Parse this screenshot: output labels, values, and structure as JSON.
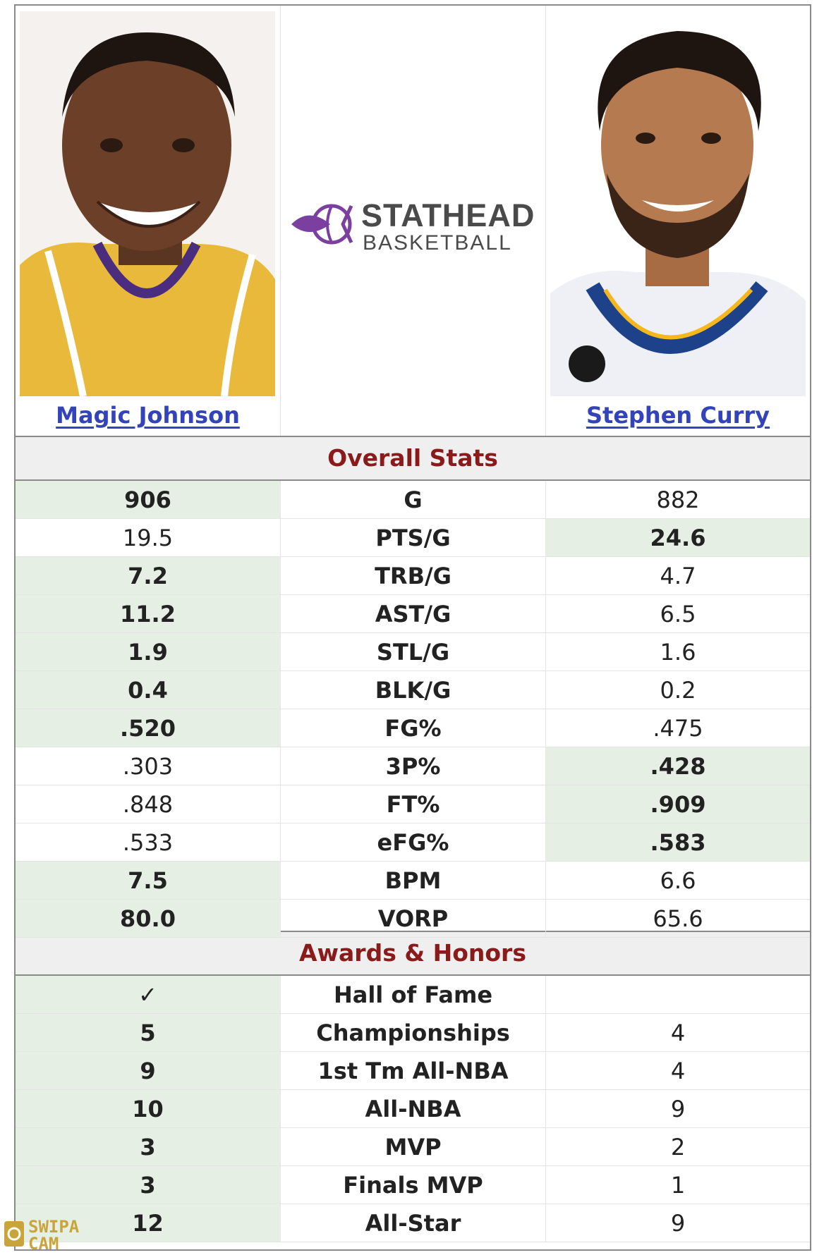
{
  "players": {
    "left": {
      "name": "Magic Johnson"
    },
    "right": {
      "name": "Stephen Curry"
    }
  },
  "logo": {
    "line1": "STATHEAD",
    "line2": "BASKETBALL"
  },
  "sections": {
    "overall": "Overall Stats",
    "awards": "Awards & Honors"
  },
  "overall_rows": [
    {
      "label": "G",
      "left": "906",
      "right": "882",
      "winner": "left"
    },
    {
      "label": "PTS/G",
      "left": "19.5",
      "right": "24.6",
      "winner": "right"
    },
    {
      "label": "TRB/G",
      "left": "7.2",
      "right": "4.7",
      "winner": "left"
    },
    {
      "label": "AST/G",
      "left": "11.2",
      "right": "6.5",
      "winner": "left"
    },
    {
      "label": "STL/G",
      "left": "1.9",
      "right": "1.6",
      "winner": "left"
    },
    {
      "label": "BLK/G",
      "left": "0.4",
      "right": "0.2",
      "winner": "left"
    },
    {
      "label": "FG%",
      "left": ".520",
      "right": ".475",
      "winner": "left"
    },
    {
      "label": "3P%",
      "left": ".303",
      "right": ".428",
      "winner": "right"
    },
    {
      "label": "FT%",
      "left": ".848",
      "right": ".909",
      "winner": "right"
    },
    {
      "label": "eFG%",
      "left": ".533",
      "right": ".583",
      "winner": "right"
    },
    {
      "label": "BPM",
      "left": "7.5",
      "right": "6.6",
      "winner": "left"
    },
    {
      "label": "VORP",
      "left": "80.0",
      "right": "65.6",
      "winner": "left"
    }
  ],
  "award_rows": [
    {
      "label": "Hall of Fame",
      "left": "✓",
      "right": "",
      "winner": "left"
    },
    {
      "label": "Championships",
      "left": "5",
      "right": "4",
      "winner": "left"
    },
    {
      "label": "1st Tm All-NBA",
      "left": "9",
      "right": "4",
      "winner": "left"
    },
    {
      "label": "All-NBA",
      "left": "10",
      "right": "9",
      "winner": "left"
    },
    {
      "label": "MVP",
      "left": "3",
      "right": "2",
      "winner": "left"
    },
    {
      "label": "Finals MVP",
      "left": "3",
      "right": "1",
      "winner": "left"
    },
    {
      "label": "All-Star",
      "left": "12",
      "right": "9",
      "winner": "left"
    }
  ],
  "watermark": {
    "line1": "SWIPA",
    "line2": "CAM"
  },
  "colors": {
    "win_bg": "#e5efe3",
    "section_text": "#8b1b1b",
    "link": "#3344bb",
    "logo_purple": "#7b3fa0"
  }
}
